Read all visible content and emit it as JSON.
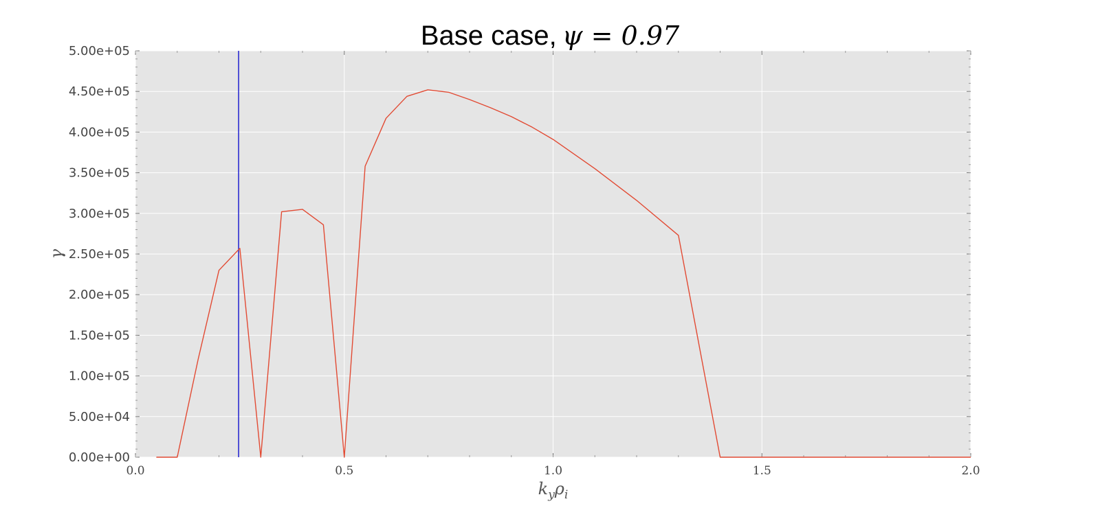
{
  "chart_data": {
    "type": "line",
    "title": "Base case,",
    "title_math": "ψ = 0.97",
    "xlabel": "k_y ρ_i",
    "xlabel_main": "k",
    "xlabel_sub1": "y",
    "xlabel_mid": "ρ",
    "xlabel_sub2": "i",
    "ylabel": "γ",
    "xlim": [
      0.0,
      2.0
    ],
    "ylim": [
      0,
      500000
    ],
    "x_ticks": [
      0.0,
      0.5,
      1.0,
      1.5,
      2.0
    ],
    "x_tick_labels": [
      "0.0",
      "0.5",
      "1.0",
      "1.5",
      "2.0"
    ],
    "y_ticks": [
      0,
      50000,
      100000,
      150000,
      200000,
      250000,
      300000,
      350000,
      400000,
      450000,
      500000
    ],
    "y_tick_labels": [
      "0.00e+00",
      "5.00e+04",
      "1.00e+05",
      "1.50e+05",
      "2.00e+05",
      "2.50e+05",
      "3.00e+05",
      "3.50e+05",
      "4.00e+05",
      "4.50e+05",
      "5.00e+05"
    ],
    "grid": true,
    "background": "#e5e5e5",
    "series": [
      {
        "color": "#e24a33",
        "x": [
          0.05,
          0.1,
          0.15,
          0.2,
          0.25,
          0.3,
          0.35,
          0.4,
          0.45,
          0.5,
          0.55,
          0.6,
          0.65,
          0.7,
          0.75,
          0.8,
          0.85,
          0.9,
          0.95,
          1.0,
          1.1,
          1.2,
          1.3,
          1.4,
          1.5,
          1.6,
          1.7,
          1.8,
          1.9,
          2.0
        ],
        "y": [
          0,
          0,
          120000,
          230000,
          257000,
          0,
          302000,
          305000,
          286000,
          0,
          358000,
          417000,
          444000,
          452000,
          449000,
          440000,
          430000,
          419000,
          406000,
          391000,
          355000,
          316000,
          273000,
          0,
          0,
          0,
          0,
          0,
          0,
          0
        ]
      }
    ],
    "vlines": [
      {
        "x": 0.247,
        "color": "#0000cc"
      }
    ]
  }
}
